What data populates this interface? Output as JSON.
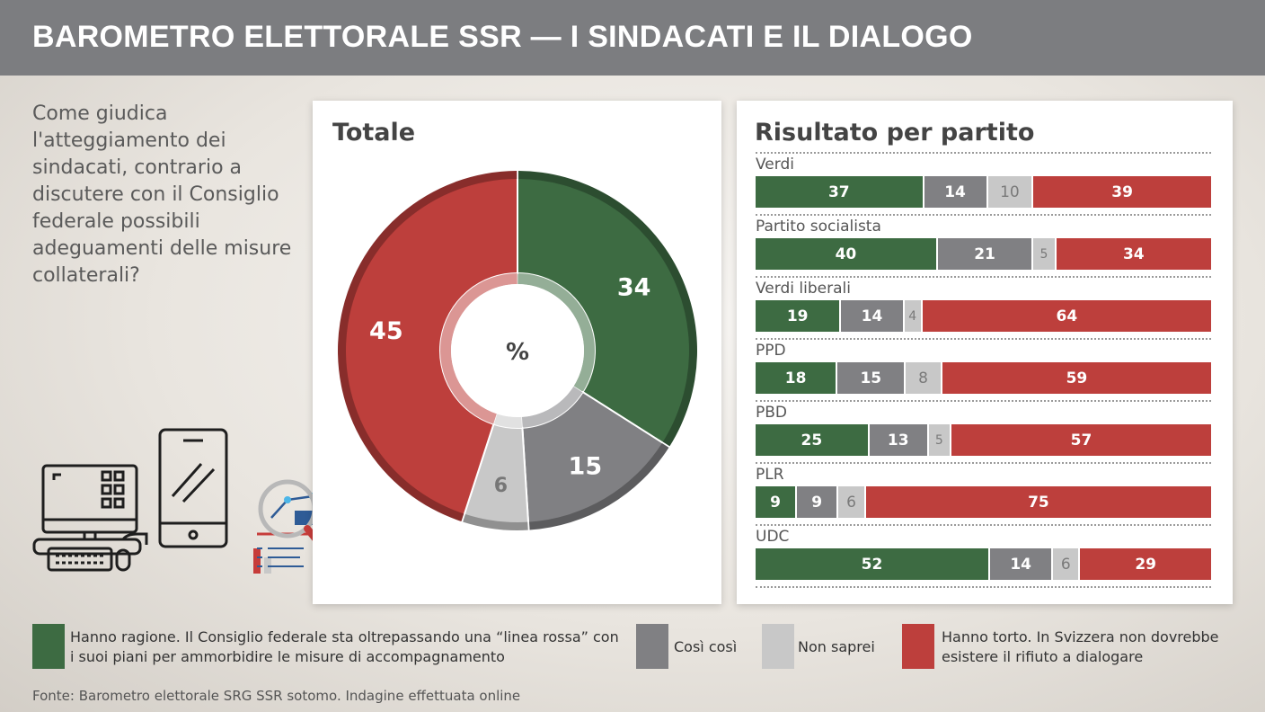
{
  "header": {
    "title": "BAROMETRO ELETTORALE SSR — I SINDACATI E IL DIALOGO"
  },
  "question": "Come giudica l'atteggiamento dei sindacati, contrario a discutere con il Consiglio federale possibili adeguamenti delle misure collaterali?",
  "colors": {
    "green": "#3d6b42",
    "dark_grey": "#808083",
    "light_grey": "#c8c8c8",
    "red": "#bd3f3c"
  },
  "chart_data": [
    {
      "type": "pie",
      "title": "Totale",
      "center_label": "%",
      "slices": [
        {
          "label": "Hanno ragione",
          "value": 34,
          "color": "#3d6b42"
        },
        {
          "label": "Così così",
          "value": 15,
          "color": "#808083"
        },
        {
          "label": "Non saprei",
          "value": 6,
          "color": "#c8c8c8"
        },
        {
          "label": "Hanno torto",
          "value": 45,
          "color": "#bd3f3c"
        }
      ]
    },
    {
      "type": "bar",
      "title": "Risultato per partito",
      "orientation": "horizontal-stacked",
      "categories": [
        "Verdi",
        "Partito socialista",
        "Verdi liberali",
        "PPD",
        "PBD",
        "PLR",
        "UDC"
      ],
      "series": [
        {
          "name": "Hanno ragione. Il Consiglio federale sta oltrepassando una “linea rossa” con i suoi piani per ammorbidire le misure di accompagnamento",
          "color": "#3d6b42",
          "values": [
            37,
            40,
            19,
            18,
            25,
            9,
            52
          ]
        },
        {
          "name": "Così così",
          "color": "#808083",
          "values": [
            14,
            21,
            14,
            15,
            13,
            9,
            14
          ]
        },
        {
          "name": "Non saprei",
          "color": "#c8c8c8",
          "values": [
            10,
            5,
            4,
            8,
            5,
            6,
            6
          ]
        },
        {
          "name": "Hanno torto. In Svizzera non dovrebbe esistere il rifiuto a dialogare",
          "color": "#bd3f3c",
          "values": [
            39,
            34,
            64,
            59,
            57,
            75,
            29
          ]
        }
      ]
    }
  ],
  "legend": [
    {
      "text": "Hanno ragione. Il Consiglio federale sta oltrepassando una “linea rossa” con i suoi piani per ammorbidire le misure di accompagnamento",
      "color": "#3d6b42"
    },
    {
      "text": "Così così",
      "color": "#808083"
    },
    {
      "text": "Non saprei",
      "color": "#c8c8c8"
    },
    {
      "text": "Hanno torto. In Svizzera non dovrebbe esistere il rifiuto a dialogare",
      "color": "#bd3f3c"
    }
  ],
  "source": "Fonte: Barometro elettorale SRG SSR sotomo. Indagine effettuata online",
  "decoration_icons": [
    "desktop-computer-icon",
    "smartphone-icon",
    "magnifier-chart-icon"
  ]
}
